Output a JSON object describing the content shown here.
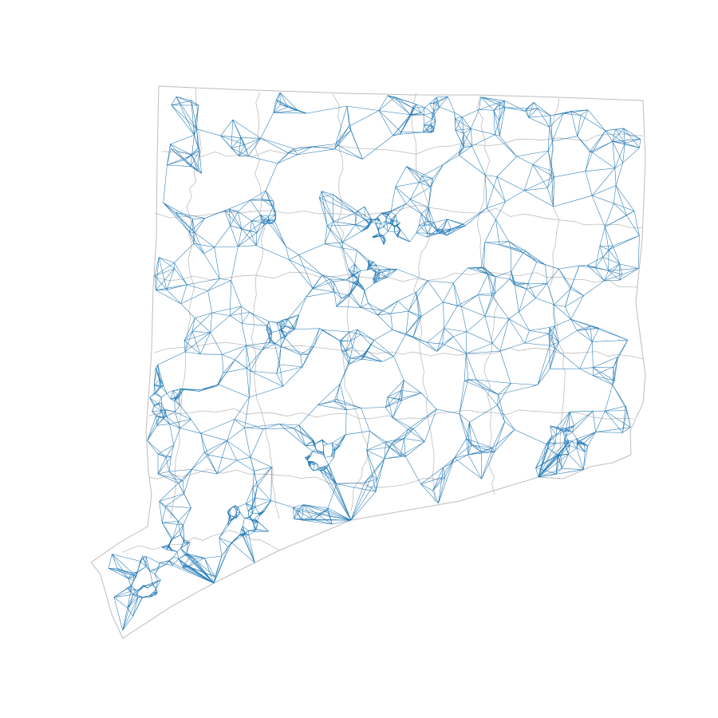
{
  "map": {
    "type": "adjacency-graph-overlay",
    "colors": {
      "background": "#ffffff",
      "boundaries": "#bdbdbd",
      "graph_edges": "#1f77b4"
    }
  }
}
